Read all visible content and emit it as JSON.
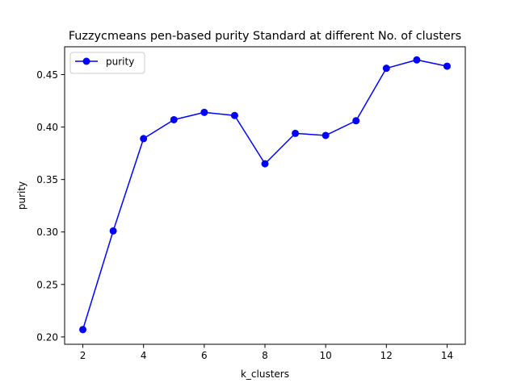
{
  "chart_data": {
    "type": "line",
    "title": "Fuzzycmeans pen-based purity Standard at different No. of clusters",
    "xlabel": "k_clusters",
    "ylabel": "purity",
    "xlim": [
      1.4,
      14.6
    ],
    "ylim": [
      0.193,
      0.4765
    ],
    "xticks": [
      2,
      4,
      6,
      8,
      10,
      12,
      14
    ],
    "yticks": [
      0.2,
      0.25,
      0.3,
      0.35,
      0.4,
      0.45
    ],
    "grid": false,
    "legend_position": "top-left",
    "series": [
      {
        "name": "purity",
        "color": "#0000ff",
        "marker": "circle",
        "x": [
          2,
          3,
          4,
          5,
          6,
          7,
          8,
          9,
          10,
          11,
          12,
          13,
          14
        ],
        "y": [
          0.207,
          0.301,
          0.389,
          0.407,
          0.414,
          0.411,
          0.365,
          0.394,
          0.392,
          0.406,
          0.456,
          0.464,
          0.458
        ]
      }
    ]
  }
}
